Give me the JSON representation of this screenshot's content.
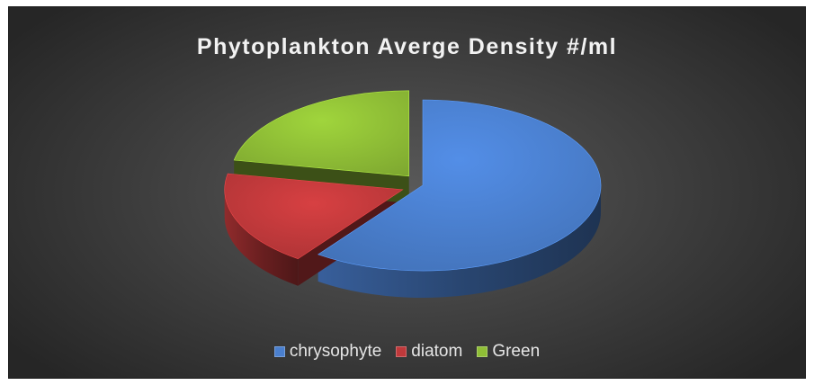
{
  "chart_data": {
    "type": "pie",
    "title": "Phytoplankton Averge Density #/ml",
    "categories": [
      "chrysophyte",
      "diatom",
      "Green"
    ],
    "values": [
      60,
      18,
      22
    ],
    "colors": [
      "#4a7fce",
      "#c0393b",
      "#8fbe36"
    ],
    "legend_position": "bottom",
    "style": "3d-exploded"
  }
}
